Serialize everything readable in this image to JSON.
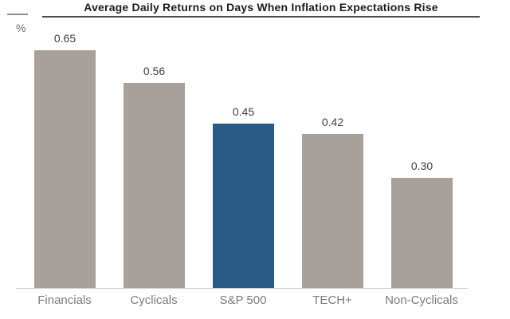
{
  "header": {
    "title": "Average Daily Returns on Days When Inflation Expectations Rise"
  },
  "axis": {
    "unit_label": "%"
  },
  "colors": {
    "bar_default": "#a8a09b",
    "bar_highlight": "#285c87",
    "title_text": "#1d1d1d",
    "value_text": "#3f3f3f",
    "category_text": "#7b7b7b",
    "baseline": "#c9c9c9"
  },
  "chart_data": {
    "type": "bar",
    "title": "Average Daily Returns on Days When Inflation Expectations Rise",
    "xlabel": "",
    "ylabel": "%",
    "categories": [
      "Financials",
      "Cyclicals",
      "S&P 500",
      "TECH+",
      "Non-Cyclicals"
    ],
    "values": [
      0.65,
      0.56,
      0.45,
      0.42,
      0.3
    ],
    "value_labels": [
      "0.65",
      "0.56",
      "0.45",
      "0.42",
      "0.30"
    ],
    "bar_colors": [
      "#a8a09b",
      "#a8a09b",
      "#285c87",
      "#a8a09b",
      "#a8a09b"
    ],
    "highlight_index": 2,
    "ylim": [
      0,
      0.7
    ],
    "grid": false,
    "legend": "none",
    "value_labels_position": "above"
  }
}
